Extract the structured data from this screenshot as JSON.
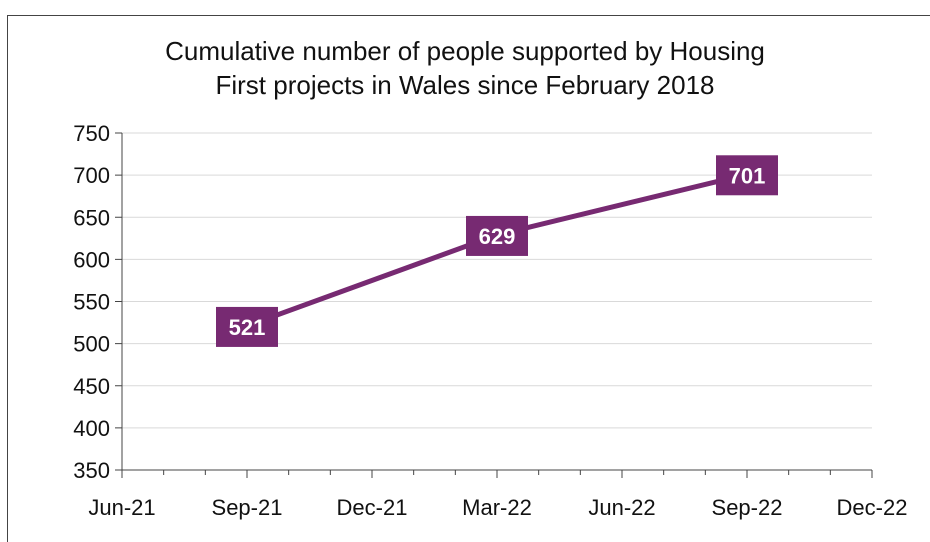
{
  "chart_data": {
    "type": "line",
    "title_lines": [
      "Cumulative number of people supported by Housing",
      "First projects in Wales since February 2018"
    ],
    "xlabel": "",
    "ylabel": "",
    "x_ticks": [
      "Jun-21",
      "Sep-21",
      "Dec-21",
      "Mar-22",
      "Jun-22",
      "Sep-22",
      "Dec-22"
    ],
    "y_ticks": [
      350,
      400,
      450,
      500,
      550,
      600,
      650,
      700,
      750
    ],
    "ylim": [
      350,
      750
    ],
    "grid": "horizontal",
    "legend": "none",
    "series": [
      {
        "color": "#772A72",
        "points": [
          {
            "x": "Sep-21",
            "y": 521,
            "label": "521"
          },
          {
            "x": "Mar-22",
            "y": 629,
            "label": "629"
          },
          {
            "x": "Sep-22",
            "y": 701,
            "label": "701"
          }
        ]
      }
    ],
    "colors": {
      "line": "#772A72",
      "label_bg": "#772A72",
      "label_text": "#ffffff",
      "grid": "#d9d9d9",
      "axis": "#444444"
    }
  }
}
